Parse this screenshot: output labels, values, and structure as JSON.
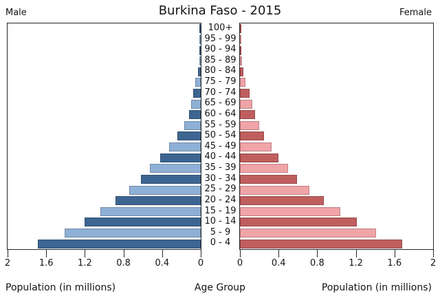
{
  "title": "Burkina Faso - 2015",
  "left_header": "Male",
  "right_header": "Female",
  "xlabel_left": "Population (in millions)",
  "xlabel_center": "Age Group",
  "xlabel_right": "Population (in millions)",
  "colors": {
    "male_dark": "#3d6591",
    "male_light": "#8fb0d6",
    "female_dark": "#c05e5e",
    "female_light": "#f0a4a8",
    "axis": "#262626",
    "text": "#141414"
  },
  "chart_data": {
    "type": "bar",
    "subtype": "population-pyramid",
    "title": "Burkina Faso - 2015",
    "xlabel": "Population (in millions)",
    "ylabel": "Age Group",
    "units": "millions",
    "xlim": [
      0,
      2
    ],
    "xticks": [
      0,
      0.4,
      0.8,
      1.2,
      1.6,
      2
    ],
    "xtick_labels_left": [
      "2",
      "1.6",
      "1.2",
      "0.8",
      "0.4",
      "0"
    ],
    "xtick_labels_right": [
      "0",
      "0.4",
      "0.8",
      "1.2",
      "1.6",
      "2"
    ],
    "grid": false,
    "legend": "none",
    "categories_top_to_bottom": [
      "100+",
      "95 - 99",
      "90 - 94",
      "85 - 89",
      "80 - 84",
      "75 - 79",
      "70 - 74",
      "65 - 69",
      "60 - 64",
      "55 - 59",
      "50 - 54",
      "45 - 49",
      "40 - 44",
      "35 - 39",
      "30 - 34",
      "25 - 29",
      "20 - 24",
      "15 - 19",
      "10 - 14",
      "5 - 9",
      "0 - 4"
    ],
    "series": [
      {
        "name": "Male",
        "side": "left",
        "values_top_to_bottom": [
          0.001,
          0.003,
          0.007,
          0.015,
          0.032,
          0.055,
          0.08,
          0.1,
          0.12,
          0.17,
          0.24,
          0.33,
          0.42,
          0.53,
          0.62,
          0.74,
          0.88,
          1.04,
          1.2,
          1.41,
          1.69
        ]
      },
      {
        "name": "Female",
        "side": "right",
        "values_top_to_bottom": [
          0.002,
          0.004,
          0.009,
          0.02,
          0.038,
          0.06,
          0.1,
          0.13,
          0.16,
          0.2,
          0.25,
          0.33,
          0.4,
          0.5,
          0.59,
          0.72,
          0.87,
          1.04,
          1.21,
          1.41,
          1.68
        ]
      }
    ]
  }
}
